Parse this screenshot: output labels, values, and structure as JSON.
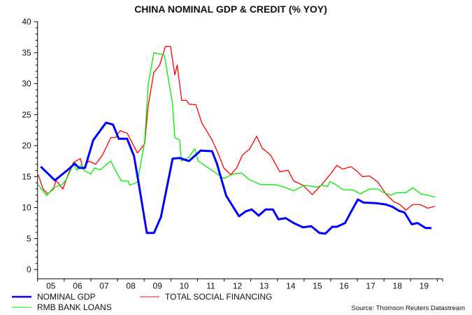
{
  "chart_data": {
    "type": "line",
    "title": "CHINA NOMINAL GDP & CREDIT (% YOY)",
    "xlabel": "",
    "ylabel": "",
    "xlim": [
      2005,
      2020.2
    ],
    "ylim": [
      -1.5,
      40
    ],
    "y_ticks": [
      0,
      5,
      10,
      15,
      20,
      25,
      30,
      35,
      40
    ],
    "x_tick_labels": [
      "05",
      "06",
      "07",
      "08",
      "09",
      "10",
      "11",
      "12",
      "13",
      "14",
      "15",
      "16",
      "17",
      "18",
      "19"
    ],
    "grid": false,
    "legend_position": "bottom-left",
    "source": "Source: Thomson Reuters Datastream",
    "series": [
      {
        "name": "NOMINAL GDP",
        "color": "#0000ff",
        "points": [
          [
            2005.12,
            16.6
          ],
          [
            2005.65,
            14.4
          ],
          [
            2006.17,
            16.2
          ],
          [
            2006.39,
            17.1
          ],
          [
            2006.56,
            16.4
          ],
          [
            2006.78,
            16.4
          ],
          [
            2007.09,
            20.9
          ],
          [
            2007.57,
            23.7
          ],
          [
            2007.83,
            23.4
          ],
          [
            2008.05,
            21.1
          ],
          [
            2008.36,
            21.1
          ],
          [
            2008.62,
            18.3
          ],
          [
            2008.8,
            13.8
          ],
          [
            2009.1,
            5.9
          ],
          [
            2009.37,
            5.9
          ],
          [
            2009.63,
            8.5
          ],
          [
            2010.07,
            17.9
          ],
          [
            2010.33,
            18.0
          ],
          [
            2010.68,
            17.5
          ],
          [
            2011.12,
            19.2
          ],
          [
            2011.55,
            19.1
          ],
          [
            2011.73,
            17.1
          ],
          [
            2012.08,
            11.9
          ],
          [
            2012.56,
            8.6
          ],
          [
            2012.82,
            9.4
          ],
          [
            2013.04,
            9.7
          ],
          [
            2013.3,
            8.7
          ],
          [
            2013.56,
            9.7
          ],
          [
            2013.83,
            9.7
          ],
          [
            2014.04,
            8.1
          ],
          [
            2014.31,
            8.3
          ],
          [
            2014.61,
            7.5
          ],
          [
            2014.96,
            6.8
          ],
          [
            2015.27,
            7.0
          ],
          [
            2015.58,
            5.9
          ],
          [
            2015.8,
            5.8
          ],
          [
            2016.06,
            6.9
          ],
          [
            2016.23,
            6.9
          ],
          [
            2016.54,
            7.5
          ],
          [
            2016.8,
            9.6
          ],
          [
            2017.02,
            11.3
          ],
          [
            2017.24,
            10.8
          ],
          [
            2017.72,
            10.7
          ],
          [
            2018.07,
            10.5
          ],
          [
            2018.33,
            10.1
          ],
          [
            2018.55,
            9.5
          ],
          [
            2018.77,
            9.2
          ],
          [
            2019.04,
            7.3
          ],
          [
            2019.26,
            7.5
          ],
          [
            2019.56,
            6.7
          ],
          [
            2019.78,
            6.7
          ]
        ]
      },
      {
        "name": "TOTAL SOCIAL FINANCING",
        "color": "#ff0000",
        "points": [
          [
            2005.03,
            15.3
          ],
          [
            2005.21,
            13.0
          ],
          [
            2005.38,
            12.2
          ],
          [
            2005.6,
            13.0
          ],
          [
            2005.69,
            14.4
          ],
          [
            2005.95,
            13.0
          ],
          [
            2006.17,
            15.6
          ],
          [
            2006.35,
            17.3
          ],
          [
            2006.61,
            17.9
          ],
          [
            2006.7,
            16.2
          ],
          [
            2006.92,
            17.5
          ],
          [
            2007.18,
            17.0
          ],
          [
            2007.44,
            18.5
          ],
          [
            2007.75,
            21.3
          ],
          [
            2007.92,
            21.3
          ],
          [
            2008.1,
            22.4
          ],
          [
            2008.36,
            22.0
          ],
          [
            2008.75,
            18.8
          ],
          [
            2009.02,
            20.3
          ],
          [
            2009.15,
            26.4
          ],
          [
            2009.36,
            31.8
          ],
          [
            2009.58,
            33.0
          ],
          [
            2009.8,
            36.0
          ],
          [
            2009.99,
            36.0
          ],
          [
            2010.15,
            31.4
          ],
          [
            2010.24,
            33.0
          ],
          [
            2010.41,
            27.3
          ],
          [
            2010.59,
            27.3
          ],
          [
            2010.68,
            26.7
          ],
          [
            2010.94,
            26.6
          ],
          [
            2011.16,
            23.7
          ],
          [
            2011.55,
            20.9
          ],
          [
            2011.77,
            18.8
          ],
          [
            2011.99,
            16.4
          ],
          [
            2012.25,
            15.3
          ],
          [
            2012.47,
            16.4
          ],
          [
            2012.69,
            18.5
          ],
          [
            2012.95,
            19.4
          ],
          [
            2013.22,
            21.5
          ],
          [
            2013.43,
            19.6
          ],
          [
            2013.74,
            18.5
          ],
          [
            2014.09,
            15.8
          ],
          [
            2014.4,
            16.0
          ],
          [
            2014.61,
            14.3
          ],
          [
            2014.96,
            13.6
          ],
          [
            2015.31,
            12.1
          ],
          [
            2015.66,
            13.7
          ],
          [
            2015.97,
            15.3
          ],
          [
            2016.23,
            16.8
          ],
          [
            2016.45,
            16.2
          ],
          [
            2016.76,
            16.6
          ],
          [
            2016.98,
            15.9
          ],
          [
            2017.19,
            15.0
          ],
          [
            2017.46,
            15.1
          ],
          [
            2017.77,
            14.1
          ],
          [
            2018.07,
            12.2
          ],
          [
            2018.38,
            10.9
          ],
          [
            2018.6,
            10.5
          ],
          [
            2018.82,
            9.6
          ],
          [
            2019.08,
            10.5
          ],
          [
            2019.34,
            10.5
          ],
          [
            2019.65,
            9.9
          ],
          [
            2019.91,
            10.2
          ]
        ]
      },
      {
        "name": "RMB BANK LOANS",
        "color": "#00ee00",
        "points": [
          [
            2005.03,
            13.7
          ],
          [
            2005.34,
            11.9
          ],
          [
            2005.6,
            13.2
          ],
          [
            2005.91,
            13.7
          ],
          [
            2006.08,
            14.5
          ],
          [
            2006.35,
            17.1
          ],
          [
            2006.48,
            16.0
          ],
          [
            2006.65,
            17.0
          ],
          [
            2006.74,
            16.0
          ],
          [
            2007.0,
            15.4
          ],
          [
            2007.13,
            16.4
          ],
          [
            2007.35,
            16.1
          ],
          [
            2007.75,
            17.5
          ],
          [
            2007.92,
            16.0
          ],
          [
            2008.14,
            14.3
          ],
          [
            2008.4,
            14.3
          ],
          [
            2008.45,
            13.6
          ],
          [
            2008.75,
            14.1
          ],
          [
            2009.02,
            20.7
          ],
          [
            2009.15,
            29.8
          ],
          [
            2009.36,
            35.0
          ],
          [
            2009.76,
            34.6
          ],
          [
            2010.07,
            26.6
          ],
          [
            2010.15,
            21.3
          ],
          [
            2010.33,
            20.9
          ],
          [
            2010.4,
            17.5
          ],
          [
            2010.68,
            18.1
          ],
          [
            2010.9,
            19.5
          ],
          [
            2011.03,
            17.5
          ],
          [
            2011.55,
            16.0
          ],
          [
            2011.99,
            14.7
          ],
          [
            2012.34,
            15.4
          ],
          [
            2012.65,
            15.6
          ],
          [
            2012.95,
            14.5
          ],
          [
            2013.39,
            13.7
          ],
          [
            2013.91,
            13.7
          ],
          [
            2014.26,
            13.3
          ],
          [
            2014.61,
            12.7
          ],
          [
            2015.01,
            13.6
          ],
          [
            2015.49,
            13.3
          ],
          [
            2015.66,
            13.6
          ],
          [
            2015.88,
            13.4
          ],
          [
            2015.97,
            14.2
          ],
          [
            2016.19,
            13.7
          ],
          [
            2016.45,
            12.9
          ],
          [
            2016.85,
            12.8
          ],
          [
            2017.11,
            12.2
          ],
          [
            2017.46,
            13.0
          ],
          [
            2017.77,
            13.0
          ],
          [
            2017.95,
            12.5
          ],
          [
            2018.25,
            12.0
          ],
          [
            2018.47,
            12.4
          ],
          [
            2018.82,
            12.4
          ],
          [
            2019.08,
            13.2
          ],
          [
            2019.39,
            12.2
          ],
          [
            2019.65,
            12.0
          ],
          [
            2019.91,
            11.7
          ]
        ]
      }
    ]
  }
}
